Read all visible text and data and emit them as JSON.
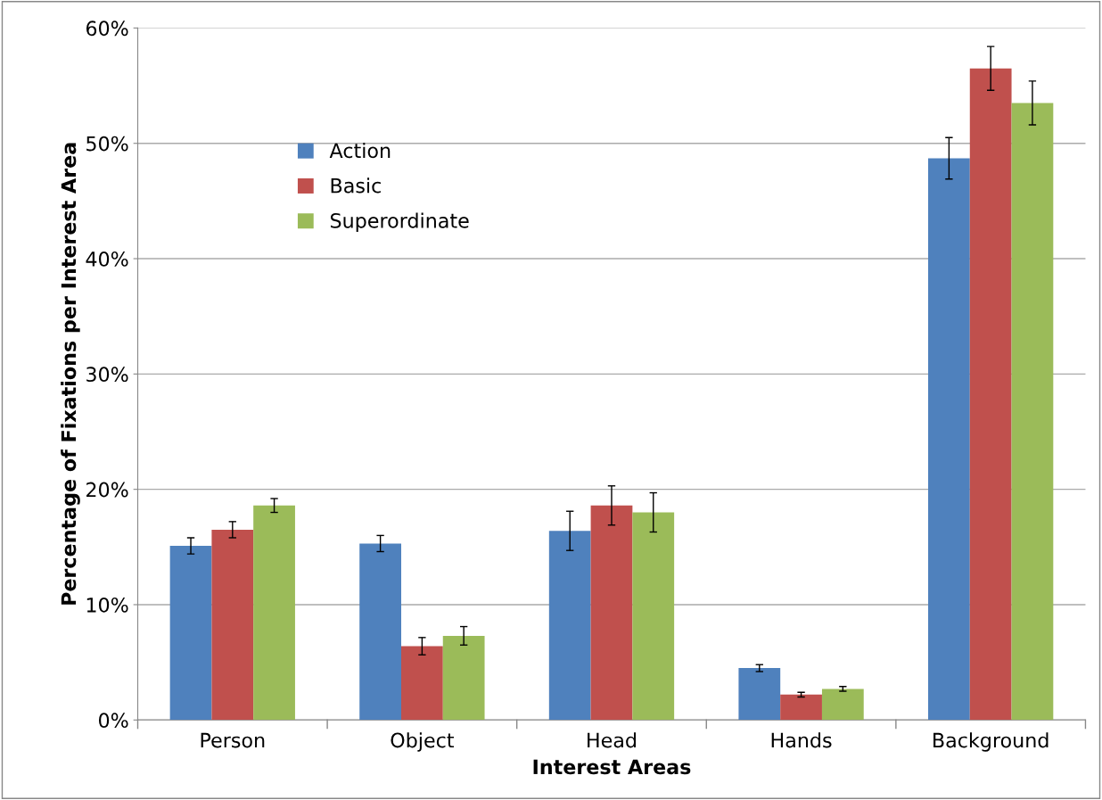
{
  "chart_data": {
    "type": "bar",
    "xlabel": "Interest Areas",
    "ylabel": "Percentage of Fixations per Interest Area",
    "categories": [
      "Person",
      "Object",
      "Head",
      "Hands",
      "Background"
    ],
    "series": [
      {
        "name": "Action",
        "color": "#4f81bd",
        "values": [
          15.1,
          15.3,
          16.4,
          4.5,
          48.7
        ],
        "errors": [
          0.7,
          0.7,
          1.7,
          0.3,
          1.8
        ]
      },
      {
        "name": "Basic",
        "color": "#c0504d",
        "values": [
          16.5,
          6.4,
          18.6,
          2.2,
          56.5
        ],
        "errors": [
          0.7,
          0.75,
          1.7,
          0.2,
          1.9
        ]
      },
      {
        "name": "Superordinate",
        "color": "#9bbb59",
        "values": [
          18.6,
          7.3,
          18.0,
          2.7,
          53.5
        ],
        "errors": [
          0.6,
          0.8,
          1.7,
          0.2,
          1.9
        ]
      }
    ],
    "ylim": [
      0,
      60
    ],
    "yticks": [
      {
        "value": 0,
        "label": "0%"
      },
      {
        "value": 10,
        "label": "10%"
      },
      {
        "value": 20,
        "label": "20%"
      },
      {
        "value": 30,
        "label": "30%"
      },
      {
        "value": 40,
        "label": "40%"
      },
      {
        "value": 50,
        "label": "50%"
      },
      {
        "value": 60,
        "label": "60%"
      }
    ],
    "grid": "y",
    "legend": "top left"
  }
}
